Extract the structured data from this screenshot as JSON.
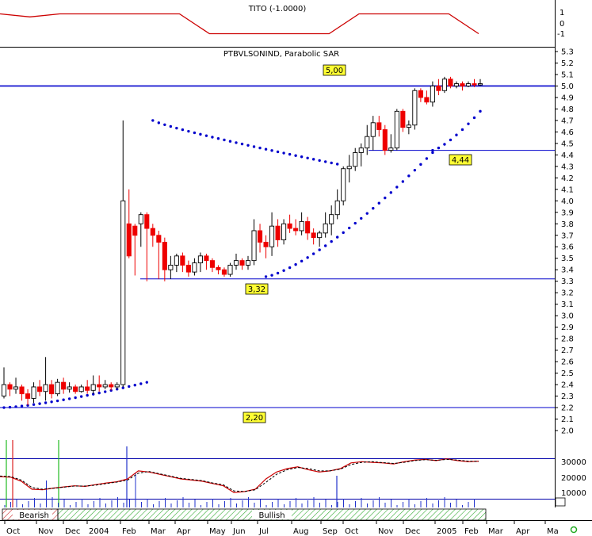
{
  "indicator_panel": {
    "title": "TITO (-1.0000)",
    "ticks": [
      "1",
      "0",
      "-1"
    ]
  },
  "price_panel": {
    "title": "PTBVLSONIND, Parabolic SAR"
  },
  "level_labels": [
    "5,00",
    "4,44",
    "3,32",
    "2,20"
  ],
  "lower_ticks": [
    "30000",
    "20000",
    "10000"
  ],
  "month_labels": [
    "Oct",
    "Nov",
    "Dec",
    "2004",
    "Feb",
    "Mar",
    "Apr",
    "May",
    "Jun",
    "Jul",
    "Aug",
    "Sep",
    "Oct",
    "Nov",
    "Dec",
    "2005",
    "Feb",
    "Mar",
    "Apr",
    "Ma"
  ],
  "trend_labels": {
    "bearish": "Bearish",
    "bullish": "Bullish"
  },
  "colors": {
    "up": "#ffffff",
    "down": "#ee0000",
    "sar": "#0000cc",
    "line": "#0000cc",
    "indicator": "#cc0000",
    "bullish_hatch": "#33aa33",
    "bearish_hatch": "#cc3333"
  },
  "chart_data": [
    {
      "type": "line",
      "title": "TITO (-1.0000)",
      "ylim": [
        -1.5,
        1.5
      ],
      "x": [
        "2003-10",
        "2003-11",
        "2003-12",
        "2004-01",
        "2004-02",
        "2004-03",
        "2004-04",
        "2004-05",
        "2004-06",
        "2004-07",
        "2004-08",
        "2004-09",
        "2004-10",
        "2004-11",
        "2004-12",
        "2005-01",
        "2005-02"
      ],
      "values": [
        1.0,
        0.7,
        1.0,
        1.0,
        1.0,
        1.0,
        1.0,
        -1.0,
        -1.0,
        -1.0,
        -1.0,
        -1.0,
        1.0,
        1.0,
        1.0,
        1.0,
        -1.0
      ]
    },
    {
      "type": "candlestick",
      "title": "PTBVLSONIND, Parabolic SAR",
      "ylim": [
        1.85,
        5.35
      ],
      "y_ticks": [
        5.3,
        5.2,
        5.1,
        5.0,
        4.9,
        4.8,
        4.7,
        4.6,
        4.5,
        4.4,
        4.3,
        4.2,
        4.1,
        4.0,
        3.9,
        3.8,
        3.7,
        3.6,
        3.5,
        3.4,
        3.3,
        3.2,
        3.1,
        3.0,
        2.9,
        2.8,
        2.7,
        2.6,
        2.5,
        2.4,
        2.3,
        2.2,
        2.1,
        2.0
      ],
      "horizontal_levels": [
        5.0,
        4.44,
        3.32,
        2.2
      ],
      "candles": [
        [
          2.3,
          2.4,
          2.55,
          2.28
        ],
        [
          2.4,
          2.36,
          2.42,
          2.3
        ],
        [
          2.36,
          2.38,
          2.46,
          2.32
        ],
        [
          2.38,
          2.32,
          2.4,
          2.26
        ],
        [
          2.32,
          2.28,
          2.36,
          2.22
        ],
        [
          2.28,
          2.38,
          2.42,
          2.24
        ],
        [
          2.38,
          2.34,
          2.44,
          2.3
        ],
        [
          2.34,
          2.4,
          2.64,
          2.26
        ],
        [
          2.4,
          2.32,
          2.44,
          2.28
        ],
        [
          2.32,
          2.42,
          2.45,
          2.3
        ],
        [
          2.42,
          2.36,
          2.46,
          2.32
        ],
        [
          2.36,
          2.38,
          2.42,
          2.33
        ],
        [
          2.38,
          2.34,
          2.4,
          2.32
        ],
        [
          2.34,
          2.38,
          2.4,
          2.33
        ],
        [
          2.38,
          2.35,
          2.44,
          2.32
        ],
        [
          2.35,
          2.4,
          2.48,
          2.32
        ],
        [
          2.4,
          2.38,
          2.48,
          2.34
        ],
        [
          2.38,
          2.4,
          2.44,
          2.36
        ],
        [
          2.4,
          2.38,
          2.42,
          2.35
        ],
        [
          2.38,
          2.4,
          2.42,
          2.36
        ],
        [
          2.4,
          4.0,
          4.7,
          2.38
        ],
        [
          3.8,
          3.52,
          4.1,
          3.5
        ],
        [
          3.78,
          3.7,
          3.8,
          3.35
        ],
        [
          3.8,
          3.88,
          3.9,
          3.6
        ],
        [
          3.88,
          3.76,
          3.9,
          3.3
        ],
        [
          3.76,
          3.7,
          3.8,
          3.6
        ],
        [
          3.7,
          3.64,
          3.74,
          3.32
        ],
        [
          3.64,
          3.4,
          3.68,
          3.3
        ],
        [
          3.4,
          3.44,
          3.52,
          3.32
        ],
        [
          3.44,
          3.52,
          3.54,
          3.38
        ],
        [
          3.52,
          3.44,
          3.55,
          3.38
        ],
        [
          3.44,
          3.38,
          3.48,
          3.34
        ],
        [
          3.38,
          3.46,
          3.5,
          3.35
        ],
        [
          3.46,
          3.52,
          3.55,
          3.38
        ],
        [
          3.52,
          3.48,
          3.54,
          3.4
        ],
        [
          3.48,
          3.42,
          3.5,
          3.38
        ],
        [
          3.42,
          3.4,
          3.44,
          3.36
        ],
        [
          3.4,
          3.36,
          3.42,
          3.34
        ],
        [
          3.36,
          3.44,
          3.46,
          3.34
        ],
        [
          3.44,
          3.48,
          3.54,
          3.4
        ],
        [
          3.48,
          3.44,
          3.5,
          3.4
        ],
        [
          3.44,
          3.48,
          3.52,
          3.4
        ],
        [
          3.48,
          3.74,
          3.84,
          3.44
        ],
        [
          3.74,
          3.64,
          3.8,
          3.55
        ],
        [
          3.64,
          3.6,
          3.7,
          3.5
        ],
        [
          3.6,
          3.78,
          3.9,
          3.52
        ],
        [
          3.78,
          3.66,
          3.84,
          3.6
        ],
        [
          3.66,
          3.8,
          3.84,
          3.62
        ],
        [
          3.8,
          3.76,
          3.88,
          3.72
        ],
        [
          3.76,
          3.74,
          3.84,
          3.7
        ],
        [
          3.74,
          3.82,
          3.9,
          3.7
        ],
        [
          3.82,
          3.72,
          3.86,
          3.66
        ],
        [
          3.72,
          3.68,
          3.76,
          3.62
        ],
        [
          3.68,
          3.72,
          3.74,
          3.6
        ],
        [
          3.72,
          3.8,
          3.9,
          3.68
        ],
        [
          3.8,
          3.88,
          3.96,
          3.7
        ],
        [
          3.88,
          4.0,
          4.1,
          3.84
        ],
        [
          4.0,
          4.28,
          4.3,
          3.96
        ],
        [
          4.28,
          4.3,
          4.4,
          4.16
        ],
        [
          4.3,
          4.42,
          4.46,
          4.26
        ],
        [
          4.42,
          4.46,
          4.5,
          4.3
        ],
        [
          4.46,
          4.56,
          4.66,
          4.4
        ],
        [
          4.56,
          4.68,
          4.74,
          4.44
        ],
        [
          4.68,
          4.62,
          4.74,
          4.56
        ],
        [
          4.62,
          4.44,
          4.66,
          4.4
        ],
        [
          4.44,
          4.46,
          4.58,
          4.42
        ],
        [
          4.46,
          4.78,
          4.8,
          4.44
        ],
        [
          4.78,
          4.64,
          4.8,
          4.6
        ],
        [
          4.64,
          4.66,
          4.7,
          4.58
        ],
        [
          4.66,
          4.96,
          4.98,
          4.62
        ],
        [
          4.96,
          4.9,
          4.98,
          4.86
        ],
        [
          4.9,
          4.86,
          4.96,
          4.84
        ],
        [
          4.86,
          5.0,
          5.04,
          4.82
        ],
        [
          5.0,
          4.96,
          5.06,
          4.92
        ],
        [
          4.96,
          5.06,
          5.08,
          4.94
        ],
        [
          5.06,
          5.0,
          5.08,
          4.98
        ],
        [
          5.0,
          5.02,
          5.04,
          4.98
        ],
        [
          5.02,
          5.0,
          5.04,
          4.96
        ],
        [
          5.0,
          5.02,
          5.04,
          4.99
        ],
        [
          5.02,
          5.01,
          5.06,
          4.99
        ],
        [
          5.01,
          5.02,
          5.06,
          5.0
        ]
      ],
      "parabolic_sar": [
        {
          "from": 0,
          "to": 24,
          "start": 2.2,
          "end": 2.42
        },
        {
          "from": 25,
          "to": 56,
          "start": 4.7,
          "end": 4.32
        },
        {
          "from": 44,
          "to": 72,
          "start": 3.34,
          "end": 4.42
        },
        {
          "from": 72,
          "to": 80,
          "start": 4.44,
          "end": 4.78
        }
      ]
    },
    {
      "type": "line",
      "title": "",
      "ylim": [
        0,
        36000
      ],
      "y_ticks": [
        30000,
        20000,
        10000
      ],
      "values": [
        20000,
        19500,
        16000,
        9000,
        8500,
        10000,
        11000,
        12000,
        11500,
        13000,
        14500,
        15500,
        18000,
        25000,
        24000,
        22000,
        20000,
        18000,
        17000,
        16000,
        14000,
        12000,
        6000,
        7000,
        9000,
        18000,
        24000,
        27000,
        28500,
        26000,
        24000,
        25000,
        27000,
        32000,
        33000,
        32500,
        32000,
        31000,
        33000,
        34500,
        35000,
        34000,
        35500,
        34000,
        33000,
        33500
      ],
      "series": [
        {
          "name": "",
          "values": [
            20000,
            19500,
            16000,
            9000,
            8500,
            10000,
            11000,
            12000,
            11500,
            13000,
            14500,
            15500,
            18000,
            25000,
            24000,
            22000,
            20000,
            18000,
            17000,
            16000,
            14000,
            12000,
            6000,
            7000,
            9000,
            18000,
            24000,
            27000,
            28500,
            26000,
            24000,
            25000,
            27000,
            32000,
            33000,
            32500,
            32000,
            31000,
            33000,
            34500,
            35000,
            34000,
            35500,
            34000,
            33000,
            33500
          ]
        },
        {
          "name": "",
          "values": [
            20500,
            20000,
            17000,
            10500,
            9000,
            9800,
            10800,
            11800,
            11800,
            12500,
            14000,
            15200,
            17000,
            23000,
            24500,
            22500,
            20500,
            18500,
            17500,
            16500,
            14500,
            12800,
            7500,
            7000,
            8500,
            15000,
            22000,
            26000,
            28000,
            27000,
            25000,
            25000,
            26500,
            30500,
            32500,
            33000,
            32200,
            31500,
            32500,
            34000,
            34800,
            34300,
            35000,
            34500,
            33500,
            33300
          ]
        }
      ],
      "markers": [
        {
          "x": 3,
          "color": "green"
        },
        {
          "x": 5,
          "color": "red"
        },
        {
          "x": 19,
          "color": "blue"
        },
        {
          "x": 27,
          "color": "green"
        },
        {
          "x": 58,
          "color": "blue"
        }
      ]
    }
  ]
}
